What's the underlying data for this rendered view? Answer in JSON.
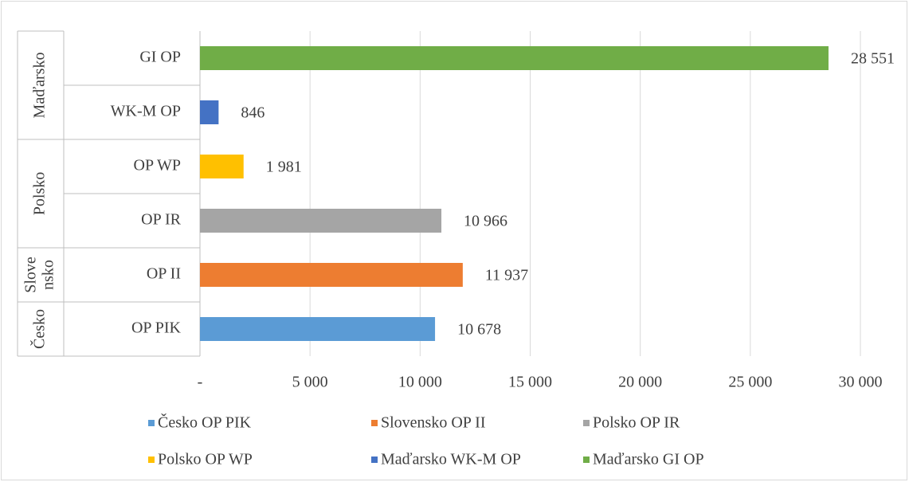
{
  "chart_data": {
    "type": "bar",
    "orientation": "horizontal",
    "categories": [
      "OP PIK",
      "OP II",
      "OP IR",
      "OP WP",
      "WK-M OP",
      "GI OP"
    ],
    "groups": [
      {
        "lines": [
          "Česko"
        ],
        "span": 1
      },
      {
        "lines": [
          "Slove",
          "nsko"
        ],
        "span": 1
      },
      {
        "lines": [
          "Polsko"
        ],
        "span": 2
      },
      {
        "lines": [
          "Maďarsko"
        ],
        "span": 2
      }
    ],
    "values": [
      10678,
      11937,
      10966,
      1981,
      846,
      28551
    ],
    "value_labels": [
      "10 678",
      "11 937",
      "10 966",
      "1 981",
      "846",
      "28 551"
    ],
    "colors": [
      "#5b9bd5",
      "#ed7d31",
      "#a5a5a5",
      "#ffc000",
      "#4472c4",
      "#70ad47"
    ],
    "legend": [
      "Česko OP PIK",
      "Slovensko OP II",
      "Polsko OP IR",
      "Polsko OP WP",
      "Maďarsko WK-M OP",
      "Maďarsko GI OP"
    ],
    "xlim": [
      0,
      30000
    ],
    "xticks": [
      {
        "value": 0,
        "label": "-"
      },
      {
        "value": 5000,
        "label": "5 000"
      },
      {
        "value": 10000,
        "label": "10 000"
      },
      {
        "value": 15000,
        "label": "15 000"
      },
      {
        "value": 20000,
        "label": "20 000"
      },
      {
        "value": 25000,
        "label": "25 000"
      },
      {
        "value": 30000,
        "label": "30 000"
      }
    ],
    "grid": true,
    "legend_position": "bottom"
  }
}
